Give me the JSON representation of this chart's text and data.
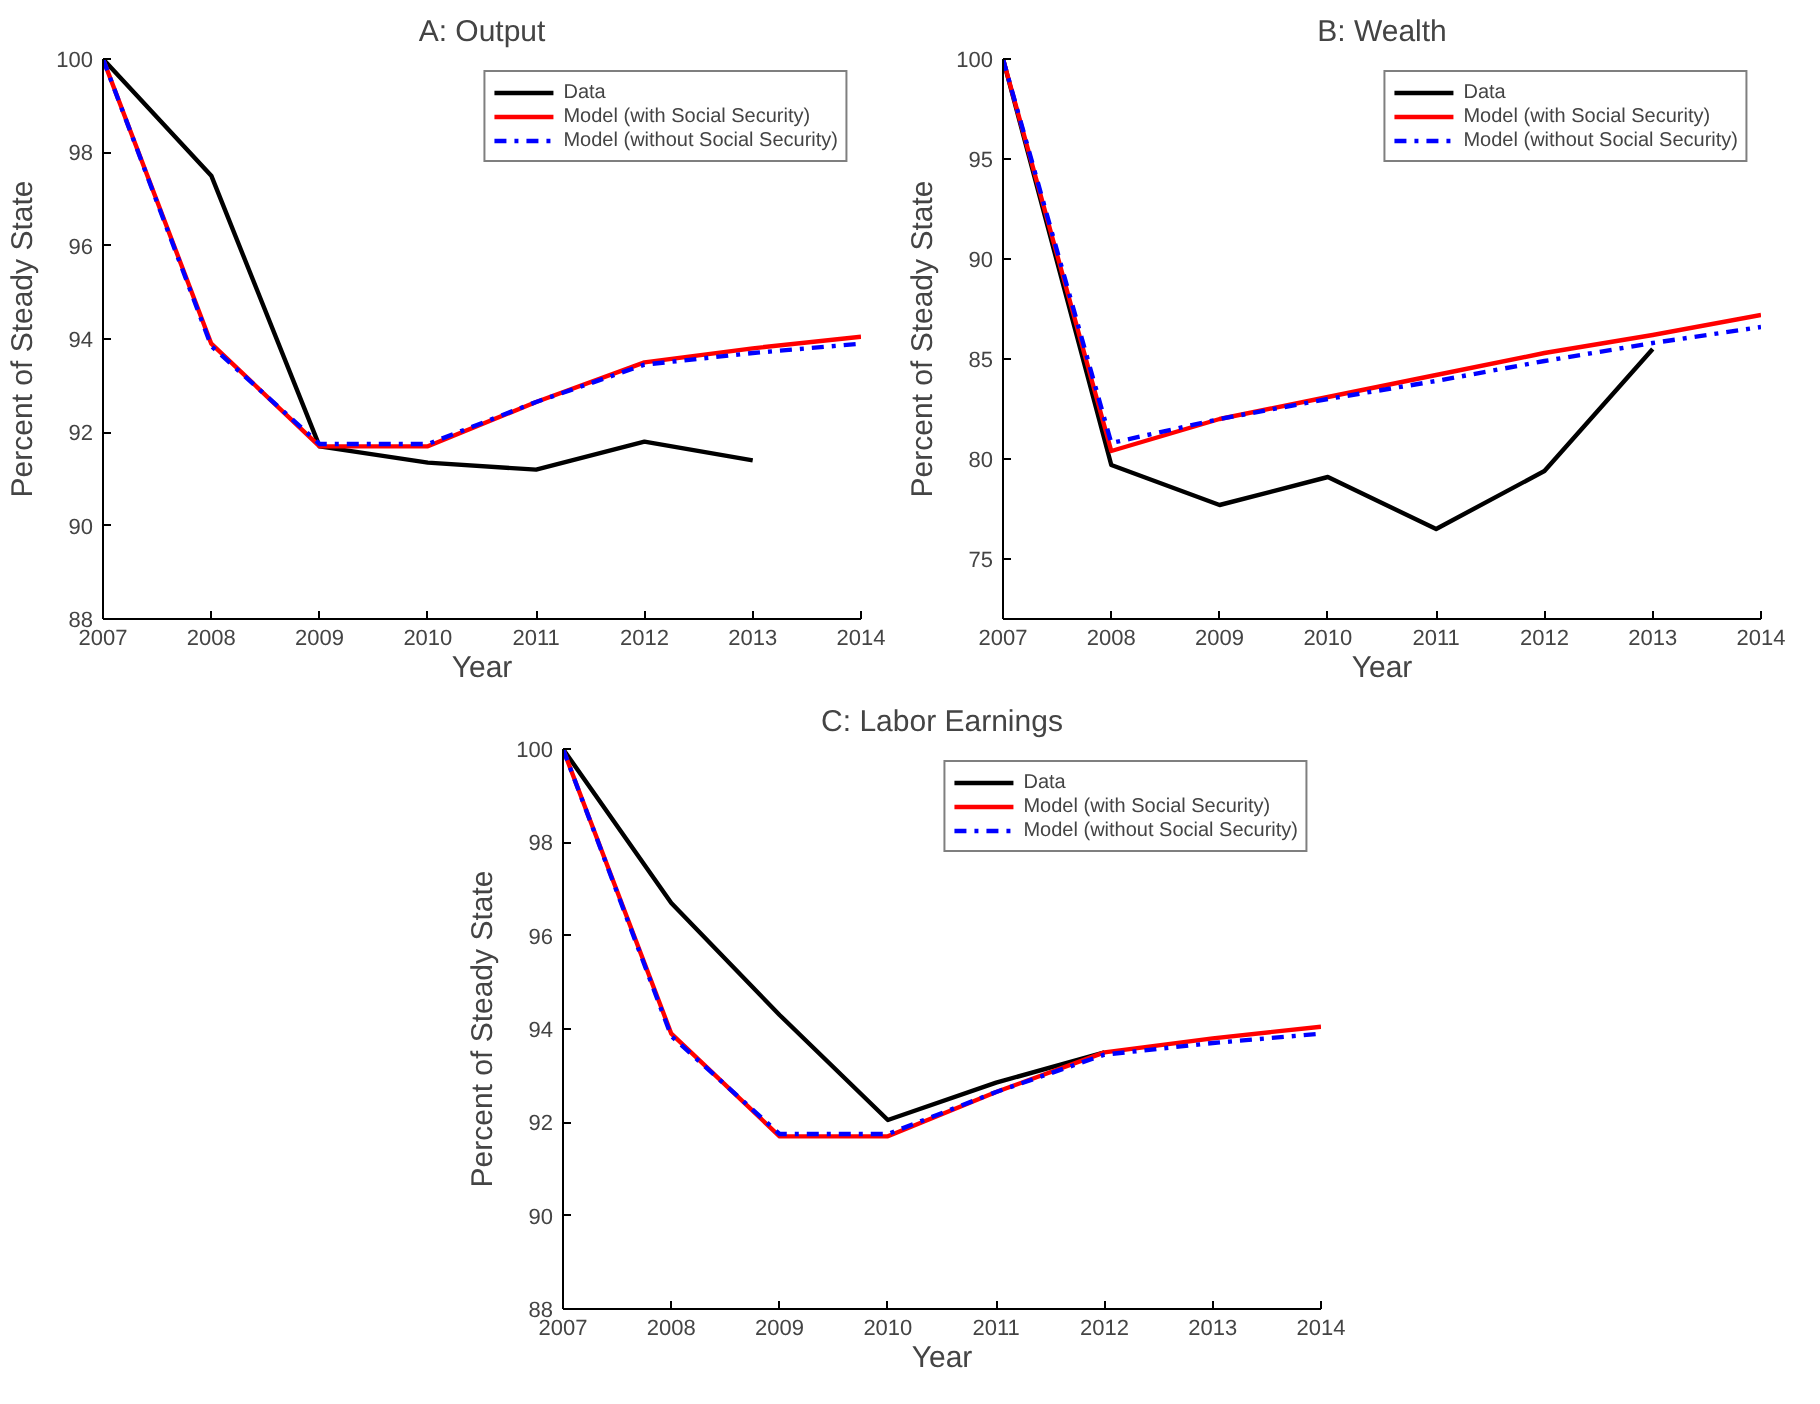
{
  "chart_data": [
    {
      "type": "line",
      "title": "A: Output",
      "xlabel": "Year",
      "ylabel": "Percent of Steady State",
      "x": [
        2007,
        2008,
        2009,
        2010,
        2011,
        2012,
        2013,
        2014
      ],
      "xlim": [
        2007,
        2014
      ],
      "xticks": [
        2007,
        2008,
        2009,
        2010,
        2011,
        2012,
        2013,
        2014
      ],
      "ylim": [
        88,
        100
      ],
      "yticks": [
        88,
        90,
        92,
        94,
        96,
        98,
        100
      ],
      "grid": false,
      "legend": "top right",
      "marker": "none",
      "series": [
        {
          "name": "Data",
          "color": "#000000",
          "line_style": "solid",
          "values": [
            100,
            97.5,
            91.7,
            91.35,
            91.2,
            91.8,
            91.4,
            null
          ]
        },
        {
          "name": "Model (with Social Security)",
          "color": "#ff0000",
          "line_style": "solid",
          "values": [
            100,
            93.9,
            91.7,
            91.7,
            92.65,
            93.5,
            93.8,
            94.05
          ]
        },
        {
          "name": "Model (without Social Security)",
          "color": "#0000ff",
          "line_style": "dashdot",
          "values": [
            100,
            93.85,
            91.75,
            91.75,
            92.65,
            93.45,
            93.7,
            93.9
          ]
        }
      ]
    },
    {
      "type": "line",
      "title": "B: Wealth",
      "xlabel": "Year",
      "ylabel": "Percent of Steady State",
      "x": [
        2007,
        2008,
        2009,
        2010,
        2011,
        2012,
        2013,
        2014
      ],
      "xlim": [
        2007,
        2014
      ],
      "xticks": [
        2007,
        2008,
        2009,
        2010,
        2011,
        2012,
        2013,
        2014
      ],
      "ylim": [
        72,
        100
      ],
      "yticks": [
        75,
        80,
        85,
        90,
        95,
        100
      ],
      "grid": false,
      "legend": "top right",
      "marker": "none",
      "series": [
        {
          "name": "Data",
          "color": "#000000",
          "line_style": "solid",
          "values": [
            100,
            79.7,
            77.7,
            79.1,
            76.5,
            79.4,
            85.5,
            null
          ]
        },
        {
          "name": "Model (with Social Security)",
          "color": "#ff0000",
          "line_style": "solid",
          "values": [
            100,
            80.4,
            82.0,
            83.1,
            84.2,
            85.3,
            86.2,
            87.2
          ]
        },
        {
          "name": "Model (without Social Security)",
          "color": "#0000ff",
          "line_style": "dashdot",
          "values": [
            100,
            80.8,
            82.0,
            83.0,
            83.9,
            84.9,
            85.8,
            86.6
          ]
        }
      ]
    },
    {
      "type": "line",
      "title": "C: Labor Earnings",
      "xlabel": "Year",
      "ylabel": "Percent of Steady State",
      "x": [
        2007,
        2008,
        2009,
        2010,
        2011,
        2012,
        2013,
        2014
      ],
      "xlim": [
        2007,
        2014
      ],
      "xticks": [
        2007,
        2008,
        2009,
        2010,
        2011,
        2012,
        2013,
        2014
      ],
      "ylim": [
        88,
        100
      ],
      "yticks": [
        88,
        90,
        92,
        94,
        96,
        98,
        100
      ],
      "grid": false,
      "legend": "top right",
      "marker": "none",
      "series": [
        {
          "name": "Data",
          "color": "#000000",
          "line_style": "solid",
          "values": [
            100,
            96.7,
            94.3,
            92.05,
            92.85,
            93.5,
            null,
            null
          ]
        },
        {
          "name": "Model (with Social Security)",
          "color": "#ff0000",
          "line_style": "solid",
          "values": [
            100,
            93.9,
            91.7,
            91.7,
            92.65,
            93.5,
            93.8,
            94.05
          ]
        },
        {
          "name": "Model (without Social Security)",
          "color": "#0000ff",
          "line_style": "dashdot",
          "values": [
            100,
            93.85,
            91.75,
            91.75,
            92.65,
            93.45,
            93.7,
            93.9
          ]
        }
      ]
    }
  ]
}
